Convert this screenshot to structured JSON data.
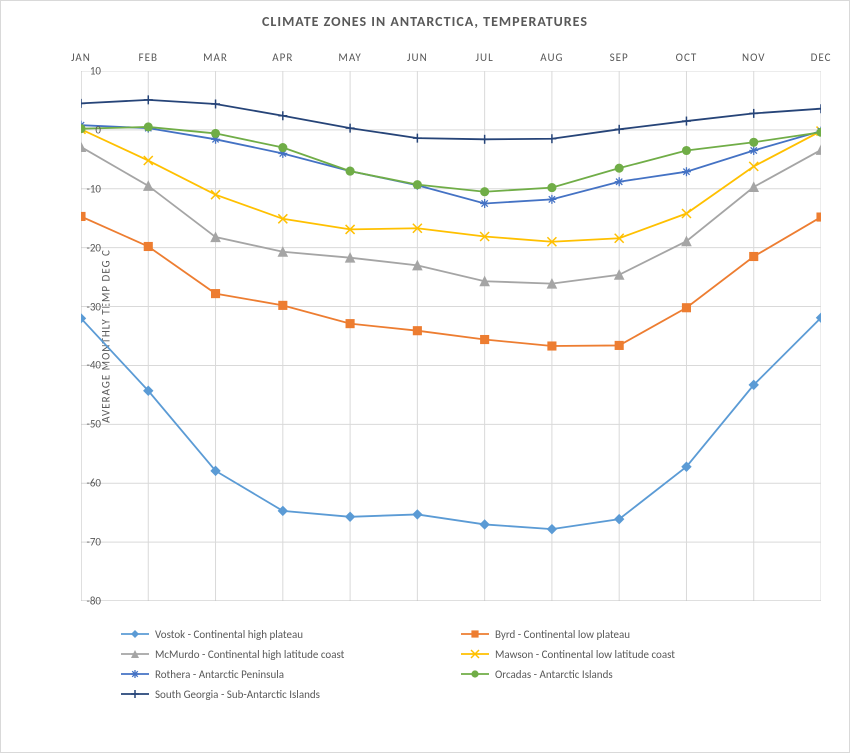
{
  "chart": {
    "type": "line",
    "title": "CLIMATE ZONES IN ANTARCTICA, TEMPERATURES",
    "title_fontsize": 14,
    "y_axis_title": "AVERAGE MONTHLY TEMP DEG C",
    "label_fontsize": 11,
    "background_color": "#ffffff",
    "plot_background_color": "#ffffff",
    "grid_color": "#d9d9d9",
    "axis_color": "#bfbfbf",
    "text_color": "#595959",
    "x_categories": [
      "JAN",
      "FEB",
      "MAR",
      "APR",
      "MAY",
      "JUN",
      "JUL",
      "AUG",
      "SEP",
      "OCT",
      "NOV",
      "DEC"
    ],
    "ylim": [
      -80,
      10
    ],
    "ytick_step": 10,
    "yticks": [
      10,
      0,
      -10,
      -20,
      -30,
      -40,
      -50,
      -60,
      -70,
      -80
    ],
    "line_width": 1.8,
    "marker_size": 4.5,
    "series": [
      {
        "name": "Vostok - Continental high plateau",
        "color": "#5b9bd5",
        "marker": "diamond",
        "values": [
          -32,
          -44.3,
          -57.9,
          -64.7,
          -65.7,
          -65.3,
          -67,
          -67.8,
          -66.1,
          -57.2,
          -43.3,
          -31.9
        ]
      },
      {
        "name": "Byrd - Continental low plateau",
        "color": "#ed7d31",
        "marker": "square",
        "values": [
          -14.7,
          -19.8,
          -27.8,
          -29.8,
          -32.9,
          -34.1,
          -35.6,
          -36.7,
          -36.6,
          -30.2,
          -21.5,
          -14.8
        ]
      },
      {
        "name": "McMurdo - Continental high latitude coast",
        "color": "#a5a5a5",
        "marker": "triangle",
        "values": [
          -2.9,
          -9.5,
          -18.2,
          -20.7,
          -21.7,
          -23,
          -25.7,
          -26.1,
          -24.6,
          -18.9,
          -9.7,
          -3.4
        ]
      },
      {
        "name": "Mawson - Continental low latitude coast",
        "color": "#ffc000",
        "marker": "x",
        "values": [
          0.1,
          -5.2,
          -11,
          -15.1,
          -16.9,
          -16.7,
          -18.1,
          -19,
          -18.4,
          -14.2,
          -6.2,
          -0.2
        ]
      },
      {
        "name": "Rothera - Antarctic Peninsula",
        "color": "#4472c4",
        "marker": "asterisk",
        "values": [
          0.8,
          0.3,
          -1.6,
          -4,
          -7,
          -9.4,
          -12.5,
          -11.8,
          -8.8,
          -7.1,
          -3.5,
          -0.2
        ]
      },
      {
        "name": "Orcadas - Antarctic Islands",
        "color": "#70ad47",
        "marker": "circle",
        "values": [
          0.2,
          0.5,
          -0.6,
          -3,
          -7,
          -9.3,
          -10.5,
          -9.8,
          -6.5,
          -3.5,
          -2.1,
          -0.4
        ]
      },
      {
        "name": "South Georgia - Sub-Antarctic Islands",
        "color": "#264478",
        "marker": "plus",
        "values": [
          4.5,
          5.1,
          4.4,
          2.4,
          0.3,
          -1.4,
          -1.6,
          -1.5,
          0.1,
          1.5,
          2.8,
          3.6
        ]
      }
    ]
  }
}
